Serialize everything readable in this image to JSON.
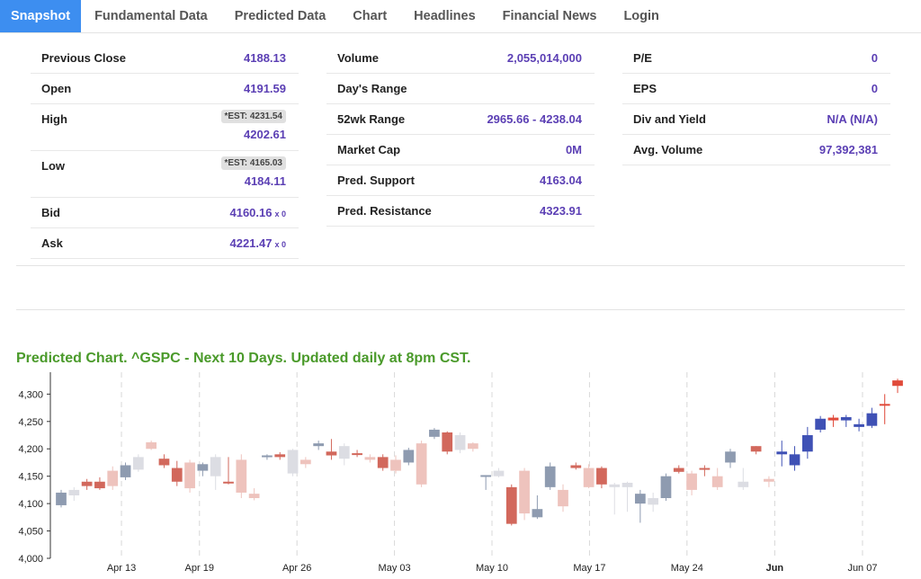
{
  "tabs": [
    {
      "label": "Snapshot",
      "active": true
    },
    {
      "label": "Fundamental Data",
      "active": false
    },
    {
      "label": "Predicted Data",
      "active": false
    },
    {
      "label": "Chart",
      "active": false
    },
    {
      "label": "Headlines",
      "active": false
    },
    {
      "label": "Financial News",
      "active": false
    },
    {
      "label": "Login",
      "active": false
    }
  ],
  "stats": {
    "col1": {
      "previous_close": {
        "label": "Previous Close",
        "value": "4188.13"
      },
      "open": {
        "label": "Open",
        "value": "4191.59"
      },
      "high": {
        "label": "High",
        "est": "*EST: 4231.54",
        "value": "4202.61"
      },
      "low": {
        "label": "Low",
        "est": "*EST: 4165.03",
        "value": "4184.11"
      },
      "bid": {
        "label": "Bid",
        "value": "4160.16",
        "size": "x 0"
      },
      "ask": {
        "label": "Ask",
        "value": "4221.47",
        "size": "x 0"
      }
    },
    "col2": {
      "volume": {
        "label": "Volume",
        "value": "2,055,014,000"
      },
      "days_range": {
        "label": "Day's Range",
        "value": ""
      },
      "wk52_range": {
        "label": "52wk Range",
        "value": "2965.66 - 4238.04"
      },
      "market_cap": {
        "label": "Market Cap",
        "value": "0M"
      },
      "pred_support": {
        "label": "Pred. Support",
        "value": "4163.04"
      },
      "pred_resistance": {
        "label": "Pred. Resistance",
        "value": "4323.91"
      }
    },
    "col3": {
      "pe": {
        "label": "P/E",
        "value": "0"
      },
      "eps": {
        "label": "EPS",
        "value": "0"
      },
      "div_yield": {
        "label": "Div and Yield",
        "value": "N/A (N/A)"
      },
      "avg_volume": {
        "label": "Avg. Volume",
        "value": "97,392,381"
      }
    }
  },
  "chart_title": "Predicted Chart. ^GSPC - Next 10 Days. Updated daily at 8pm CST.",
  "colors": {
    "accent": "#3d8ef0",
    "value_text": "#5b3fb4",
    "title_green": "#4a9a2a",
    "up_dark": "#8e9bb0",
    "up_light": "#dcdde3",
    "down_dark": "#d2685c",
    "down_light": "#eec3bd",
    "pred_up": "#3f51b5",
    "pred_down": "#e04a3a"
  },
  "chart_data": {
    "type": "candlestick",
    "title": "",
    "xlabel": "",
    "ylabel": "",
    "ylim": [
      4000,
      4340
    ],
    "yticks": [
      4000,
      4050,
      4100,
      4150,
      4200,
      4250,
      4300
    ],
    "ytick_labels": [
      "4,000",
      "4,050",
      "4,100",
      "4,150",
      "4,200",
      "4,250",
      "4,300"
    ],
    "xticks": [
      {
        "label": "Apr 13",
        "at": 3,
        "bold": false
      },
      {
        "label": "Apr 19",
        "at": 7,
        "bold": false
      },
      {
        "label": "Apr 26",
        "at": 12,
        "bold": false
      },
      {
        "label": "May 03",
        "at": 17,
        "bold": false
      },
      {
        "label": "May 10",
        "at": 22,
        "bold": false
      },
      {
        "label": "May 17",
        "at": 27,
        "bold": false
      },
      {
        "label": "May 24",
        "at": 32,
        "bold": false
      },
      {
        "label": "Jun",
        "at": 36.5,
        "bold": true
      },
      {
        "label": "Jun 07",
        "at": 41,
        "bold": false
      }
    ],
    "candles": [
      {
        "o": 4097,
        "h": 4125,
        "l": 4093,
        "c": 4120,
        "s": "ud"
      },
      {
        "o": 4115,
        "h": 4130,
        "l": 4105,
        "c": 4125,
        "s": "ul"
      },
      {
        "o": 4132,
        "h": 4145,
        "l": 4125,
        "c": 4140,
        "s": "dd"
      },
      {
        "o": 4140,
        "h": 4148,
        "l": 4125,
        "c": 4128,
        "s": "dd"
      },
      {
        "o": 4160,
        "h": 4168,
        "l": 4125,
        "c": 4132,
        "s": "dl"
      },
      {
        "o": 4148,
        "h": 4175,
        "l": 4143,
        "c": 4170,
        "s": "ud"
      },
      {
        "o": 4162,
        "h": 4190,
        "l": 4158,
        "c": 4185,
        "s": "ul"
      },
      {
        "o": 4212,
        "h": 4215,
        "l": 4198,
        "c": 4200,
        "s": "dl"
      },
      {
        "o": 4182,
        "h": 4190,
        "l": 4165,
        "c": 4170,
        "s": "dd"
      },
      {
        "o": 4165,
        "h": 4178,
        "l": 4132,
        "c": 4140,
        "s": "dd"
      },
      {
        "o": 4175,
        "h": 4180,
        "l": 4120,
        "c": 4128,
        "s": "dl"
      },
      {
        "o": 4160,
        "h": 4175,
        "l": 4150,
        "c": 4172,
        "s": "ud"
      },
      {
        "o": 4150,
        "h": 4190,
        "l": 4125,
        "c": 4185,
        "s": "ul"
      },
      {
        "o": 4140,
        "h": 4185,
        "l": 4135,
        "c": 4138,
        "s": "dd"
      },
      {
        "o": 4180,
        "h": 4190,
        "l": 4110,
        "c": 4120,
        "s": "dl"
      },
      {
        "o": 4110,
        "h": 4128,
        "l": 4106,
        "c": 4118,
        "s": "dl"
      },
      {
        "o": 4185,
        "h": 4190,
        "l": 4180,
        "c": 4188,
        "s": "ud"
      },
      {
        "o": 4190,
        "h": 4194,
        "l": 4180,
        "c": 4185,
        "s": "dd"
      },
      {
        "o": 4155,
        "h": 4200,
        "l": 4150,
        "c": 4198,
        "s": "ul"
      },
      {
        "o": 4180,
        "h": 4185,
        "l": 4165,
        "c": 4172,
        "s": "dl"
      },
      {
        "o": 4205,
        "h": 4215,
        "l": 4198,
        "c": 4210,
        "s": "ud"
      },
      {
        "o": 4195,
        "h": 4218,
        "l": 4180,
        "c": 4188,
        "s": "dd"
      },
      {
        "o": 4182,
        "h": 4210,
        "l": 4170,
        "c": 4205,
        "s": "ul"
      },
      {
        "o": 4190,
        "h": 4198,
        "l": 4185,
        "c": 4192,
        "s": "dd"
      },
      {
        "o": 4185,
        "h": 4190,
        "l": 4175,
        "c": 4180,
        "s": "dl"
      },
      {
        "o": 4185,
        "h": 4190,
        "l": 4160,
        "c": 4165,
        "s": "dd"
      },
      {
        "o": 4180,
        "h": 4188,
        "l": 4155,
        "c": 4160,
        "s": "dl"
      },
      {
        "o": 4175,
        "h": 4202,
        "l": 4170,
        "c": 4198,
        "s": "ud"
      },
      {
        "o": 4210,
        "h": 4215,
        "l": 4130,
        "c": 4135,
        "s": "dl"
      },
      {
        "o": 4222,
        "h": 4238,
        "l": 4218,
        "c": 4235,
        "s": "ud"
      },
      {
        "o": 4230,
        "h": 4232,
        "l": 4190,
        "c": 4195,
        "s": "dd"
      },
      {
        "o": 4198,
        "h": 4230,
        "l": 4192,
        "c": 4225,
        "s": "ul"
      },
      {
        "o": 4210,
        "h": 4212,
        "l": 4195,
        "c": 4200,
        "s": "dl"
      },
      {
        "o": 4150,
        "h": 4152,
        "l": 4125,
        "c": 4152,
        "s": "ud"
      },
      {
        "o": 4150,
        "h": 4165,
        "l": 4148,
        "c": 4160,
        "s": "ul"
      },
      {
        "o": 4130,
        "h": 4135,
        "l": 4060,
        "c": 4063,
        "s": "dd"
      },
      {
        "o": 4160,
        "h": 4165,
        "l": 4070,
        "c": 4082,
        "s": "dl"
      },
      {
        "o": 4075,
        "h": 4115,
        "l": 4072,
        "c": 4090,
        "s": "ud"
      },
      {
        "o": 4130,
        "h": 4175,
        "l": 4125,
        "c": 4168,
        "s": "ud"
      },
      {
        "o": 4125,
        "h": 4135,
        "l": 4085,
        "c": 4095,
        "s": "dl"
      },
      {
        "o": 4170,
        "h": 4175,
        "l": 4162,
        "c": 4165,
        "s": "dd"
      },
      {
        "o": 4165,
        "h": 4172,
        "l": 4128,
        "c": 4130,
        "s": "dl"
      },
      {
        "o": 4165,
        "h": 4168,
        "l": 4128,
        "c": 4135,
        "s": "dd"
      },
      {
        "o": 4130,
        "h": 4138,
        "l": 4080,
        "c": 4135,
        "s": "ul"
      },
      {
        "o": 4130,
        "h": 4140,
        "l": 4085,
        "c": 4138,
        "s": "ul"
      },
      {
        "o": 4100,
        "h": 4125,
        "l": 4065,
        "c": 4118,
        "s": "ud"
      },
      {
        "o": 4098,
        "h": 4120,
        "l": 4085,
        "c": 4110,
        "s": "ul"
      },
      {
        "o": 4110,
        "h": 4155,
        "l": 4105,
        "c": 4150,
        "s": "ud"
      },
      {
        "o": 4165,
        "h": 4170,
        "l": 4155,
        "c": 4158,
        "s": "dd"
      },
      {
        "o": 4155,
        "h": 4160,
        "l": 4115,
        "c": 4125,
        "s": "dl"
      },
      {
        "o": 4165,
        "h": 4170,
        "l": 4150,
        "c": 4162,
        "s": "dd"
      },
      {
        "o": 4150,
        "h": 4165,
        "l": 4125,
        "c": 4130,
        "s": "dl"
      },
      {
        "o": 4175,
        "h": 4200,
        "l": 4165,
        "c": 4195,
        "s": "ud"
      },
      {
        "o": 4130,
        "h": 4165,
        "l": 4125,
        "c": 4140,
        "s": "ul"
      },
      {
        "o": 4195,
        "h": 4205,
        "l": 4190,
        "c": 4205,
        "s": "dd"
      },
      {
        "o": 4145,
        "h": 4150,
        "l": 4130,
        "c": 4140,
        "s": "dl"
      }
    ],
    "predicted": [
      {
        "o": 4190,
        "h": 4215,
        "l": 4168,
        "c": 4195,
        "s": "pu"
      },
      {
        "o": 4170,
        "h": 4205,
        "l": 4160,
        "c": 4190,
        "s": "pu"
      },
      {
        "o": 4195,
        "h": 4240,
        "l": 4182,
        "c": 4225,
        "s": "pu"
      },
      {
        "o": 4235,
        "h": 4260,
        "l": 4230,
        "c": 4255,
        "s": "pu"
      },
      {
        "o": 4257,
        "h": 4262,
        "l": 4240,
        "c": 4252,
        "s": "pd"
      },
      {
        "o": 4252,
        "h": 4262,
        "l": 4240,
        "c": 4258,
        "s": "pu"
      },
      {
        "o": 4240,
        "h": 4255,
        "l": 4232,
        "c": 4245,
        "s": "pu"
      },
      {
        "o": 4242,
        "h": 4275,
        "l": 4238,
        "c": 4265,
        "s": "pu"
      },
      {
        "o": 4282,
        "h": 4300,
        "l": 4245,
        "c": 4280,
        "s": "pd"
      },
      {
        "o": 4325,
        "h": 4328,
        "l": 4302,
        "c": 4315,
        "s": "pd"
      }
    ]
  }
}
